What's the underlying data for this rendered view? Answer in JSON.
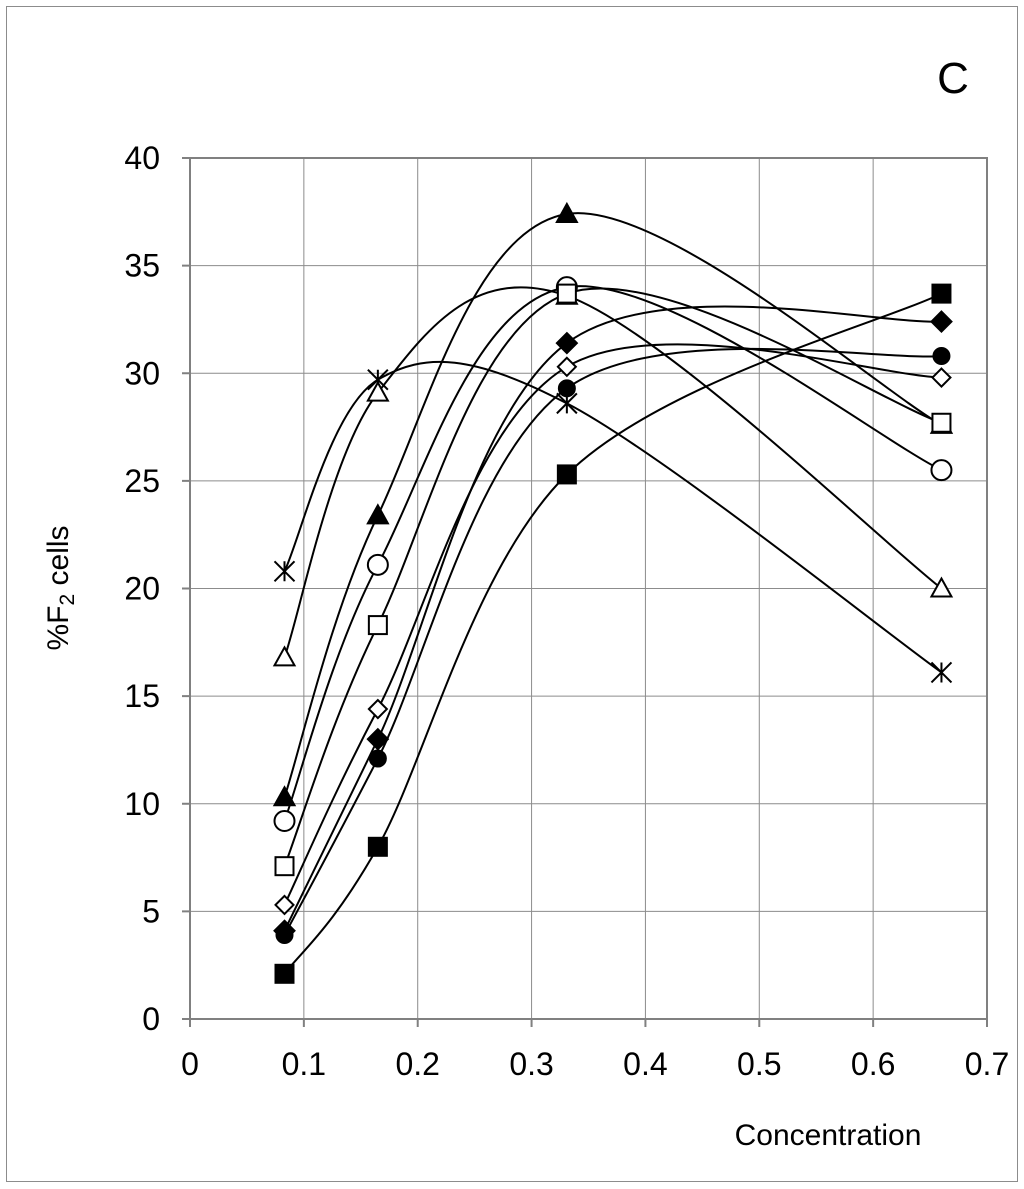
{
  "chart_data": {
    "type": "line",
    "panel_label": "C",
    "title": "",
    "xlabel": "Concentration",
    "ylabel": "%F",
    "ylabel_sub": "2",
    "ylabel_suffix": " cells",
    "xlim": [
      0,
      0.7
    ],
    "ylim": [
      0,
      40
    ],
    "x_ticks": [
      "0",
      "0.1",
      "0.2",
      "0.3",
      "0.4",
      "0.5",
      "0.6",
      "0.7"
    ],
    "y_ticks": [
      "0",
      "5",
      "10",
      "15",
      "20",
      "25",
      "30",
      "35",
      "40"
    ],
    "grid": true,
    "legend": "none",
    "series": [
      {
        "name": "asterisk",
        "marker": "asterisk",
        "x": [
          0.083,
          0.165,
          0.331,
          0.66
        ],
        "values": [
          20.8,
          29.7,
          28.6,
          16.1
        ]
      },
      {
        "name": "open triangle",
        "marker": "open-triangle",
        "x": [
          0.083,
          0.165,
          0.331,
          0.66
        ],
        "values": [
          16.8,
          29.1,
          33.6,
          20.0
        ]
      },
      {
        "name": "filled triangle",
        "marker": "filled-triangle",
        "x": [
          0.083,
          0.165,
          0.331,
          0.66
        ],
        "values": [
          10.3,
          23.4,
          37.4,
          27.6
        ]
      },
      {
        "name": "open circle",
        "marker": "open-circle",
        "x": [
          0.083,
          0.165,
          0.331,
          0.66
        ],
        "values": [
          9.2,
          21.1,
          34.0,
          25.5
        ]
      },
      {
        "name": "open square",
        "marker": "open-square",
        "x": [
          0.083,
          0.165,
          0.331,
          0.66
        ],
        "values": [
          7.1,
          18.3,
          33.7,
          27.7
        ]
      },
      {
        "name": "open diamond",
        "marker": "open-diamond",
        "x": [
          0.083,
          0.165,
          0.331,
          0.66
        ],
        "values": [
          5.3,
          14.4,
          30.3,
          29.8
        ]
      },
      {
        "name": "filled diamond",
        "marker": "filled-diamond",
        "x": [
          0.083,
          0.165,
          0.331,
          0.66
        ],
        "values": [
          4.1,
          13.0,
          31.4,
          32.4
        ]
      },
      {
        "name": "filled circle",
        "marker": "filled-circle",
        "x": [
          0.083,
          0.165,
          0.331,
          0.66
        ],
        "values": [
          3.9,
          12.1,
          29.3,
          30.8
        ]
      },
      {
        "name": "filled square",
        "marker": "filled-square",
        "x": [
          0.083,
          0.165,
          0.331,
          0.66
        ],
        "values": [
          2.1,
          8.0,
          25.3,
          33.7
        ]
      }
    ]
  }
}
